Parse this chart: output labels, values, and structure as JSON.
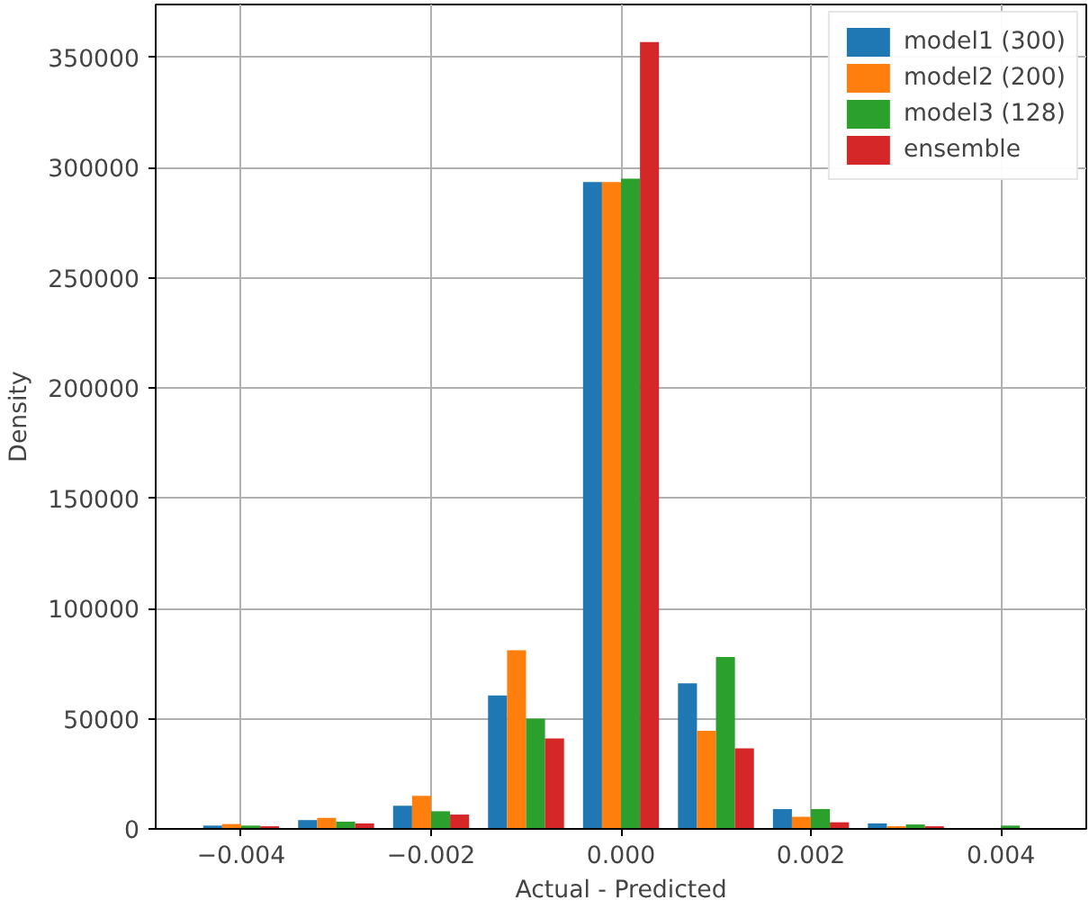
{
  "chart_data": {
    "type": "histogram",
    "xlabel": "Actual - Predicted",
    "ylabel": "Density",
    "bins": [
      -0.0045,
      -0.0035,
      -0.0025,
      -0.0015,
      -0.0005,
      0.0005,
      0.0015,
      0.0025,
      0.0035,
      0.0045
    ],
    "series": [
      {
        "name": "model1 (300)",
        "color": "#1f77b4",
        "values": [
          1500,
          4000,
          10500,
          60500,
          293500,
          66000,
          9000,
          2500,
          300
        ]
      },
      {
        "name": "model2 (200)",
        "color": "#ff7f0e",
        "values": [
          2200,
          5000,
          15000,
          81000,
          293500,
          44500,
          5500,
          1200,
          200
        ]
      },
      {
        "name": "model3 (128)",
        "color": "#2ca02c",
        "values": [
          1500,
          3300,
          8000,
          50000,
          295000,
          78000,
          9000,
          2000,
          1500
        ]
      },
      {
        "name": "ensemble",
        "color": "#d62728",
        "values": [
          1200,
          2500,
          6500,
          41000,
          357000,
          36500,
          3000,
          1200,
          300
        ]
      }
    ],
    "xlim": [
      -0.0049,
      0.0049
    ],
    "ylim": [
      0,
      374000
    ],
    "xticks": [
      {
        "value": -0.004,
        "label": "−0.004"
      },
      {
        "value": -0.002,
        "label": "−0.002"
      },
      {
        "value": 0.0,
        "label": "0.000"
      },
      {
        "value": 0.002,
        "label": "0.002"
      },
      {
        "value": 0.004,
        "label": "0.004"
      }
    ],
    "yticks": [
      0,
      50000,
      100000,
      150000,
      200000,
      250000,
      300000,
      350000
    ],
    "grid": true,
    "legend": "top right"
  }
}
